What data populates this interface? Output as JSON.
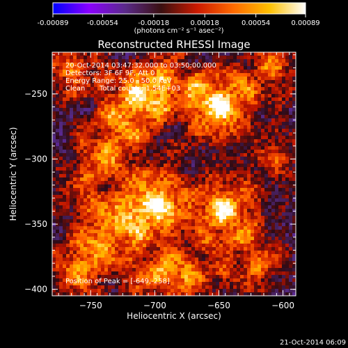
{
  "colorbar": {
    "ticks": [
      "-0.00089",
      "-0.00054",
      "-0.00018",
      "0.00018",
      "0.00054",
      "0.00089"
    ],
    "units": "(photons cm⁻² s⁻¹ asec⁻²)",
    "range": [
      -0.00089,
      0.00089
    ],
    "colors": [
      "#0000ff",
      "#8a00ff",
      "#5a2a8a",
      "#3a1010",
      "#cc1a00",
      "#ff6a00",
      "#ffc000",
      "#ffffff"
    ]
  },
  "chart_data": {
    "type": "heatmap",
    "title": "Reconstructed RHESSI Image",
    "xlabel": "Heliocentric X (arcsec)",
    "ylabel": "Heliocentric Y (arcsec)",
    "xlim": [
      -780,
      -590
    ],
    "ylim": [
      -405,
      -218
    ],
    "x_ticks": [
      -750,
      -700,
      -650,
      -600
    ],
    "y_ticks": [
      -250,
      -300,
      -350,
      -400
    ],
    "info": {
      "time": "20-Oct-2014 03:47:32.000 to 03:50:00.000",
      "detectors": "Detectors: 3F 6F 9F, Att 0",
      "energy": "Energy Range: 25.0 - 50.0 keV",
      "method": "Clean",
      "counts": "Total counts: 1.54E+03"
    },
    "peak_label": "Position of Peak = [",
    "peak_value": "-649,-258",
    "peak_close": "]",
    "hotspots": [
      {
        "x": -650,
        "y": -258,
        "amp": 1.0
      },
      {
        "x": -715,
        "y": -255,
        "amp": 0.75
      },
      {
        "x": -765,
        "y": -230,
        "amp": 0.6
      },
      {
        "x": -690,
        "y": -240,
        "amp": 0.5
      },
      {
        "x": -735,
        "y": -290,
        "amp": 0.55
      },
      {
        "x": -700,
        "y": -335,
        "amp": 0.95
      },
      {
        "x": -735,
        "y": -355,
        "amp": 0.6
      },
      {
        "x": -645,
        "y": -340,
        "amp": 0.85
      },
      {
        "x": -620,
        "y": -380,
        "amp": 0.55
      },
      {
        "x": -670,
        "y": -390,
        "amp": 0.45
      },
      {
        "x": -760,
        "y": -385,
        "amp": 0.65
      },
      {
        "x": -700,
        "y": -390,
        "amp": 0.5
      },
      {
        "x": -610,
        "y": -230,
        "amp": 0.55
      },
      {
        "x": -605,
        "y": -300,
        "amp": 0.4
      },
      {
        "x": -755,
        "y": -320,
        "amp": 0.35
      }
    ],
    "peak": {
      "x": -649,
      "y": -258
    }
  },
  "footer": {
    "timestamp": "21-Oct-2014 06:09"
  }
}
